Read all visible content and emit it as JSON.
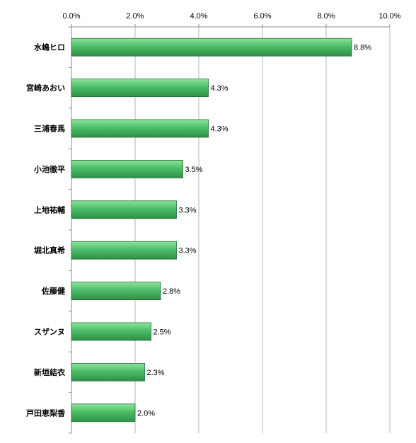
{
  "chart_data": {
    "type": "bar",
    "orientation": "horizontal",
    "categories": [
      "水嶋ヒロ",
      "宮崎あおい",
      "三浦春馬",
      "小池徹平",
      "上地祐輔",
      "堀北真希",
      "佐藤健",
      "スザンヌ",
      "新垣結衣",
      "戸田恵梨香"
    ],
    "values": [
      8.8,
      4.3,
      4.3,
      3.5,
      3.3,
      3.3,
      2.8,
      2.5,
      2.3,
      2.0
    ],
    "data_labels": [
      "8.8%",
      "4.3%",
      "4.3%",
      "3.5%",
      "3.3%",
      "3.3%",
      "2.8%",
      "2.5%",
      "2.3%",
      "2.0%"
    ],
    "xlim": [
      0,
      10
    ],
    "x_ticks": [
      "0.0%",
      "2.0%",
      "4.0%",
      "6.0%",
      "8.0%",
      "10.0%"
    ],
    "axis_position": "top",
    "grid": true,
    "legend": "none",
    "colors": {
      "bar_light": "#8ee49c",
      "bar_mid": "#4cbe67",
      "bar_dark": "#2e8f46",
      "bar_edge": "#1f6f34",
      "grid": "#b4b4b4",
      "axis": "#8c8c8c"
    }
  }
}
